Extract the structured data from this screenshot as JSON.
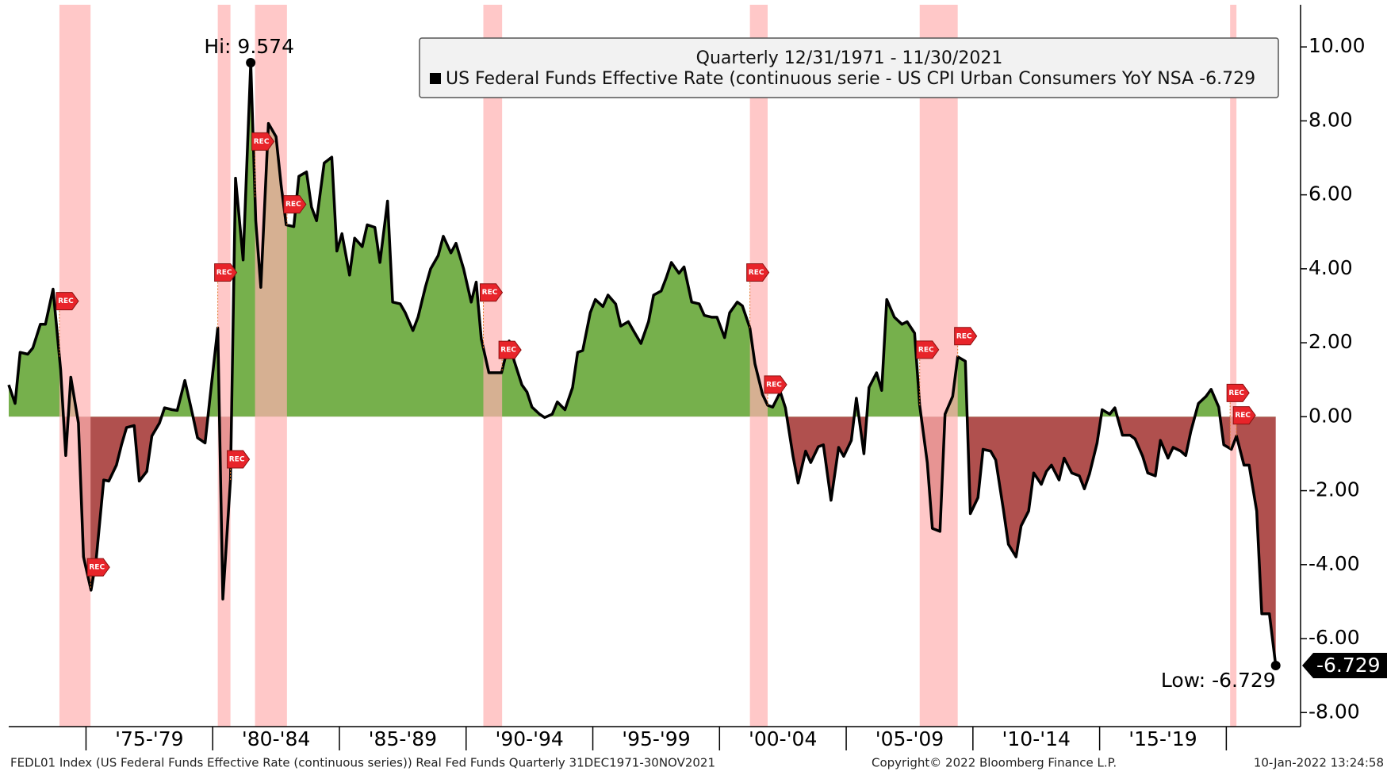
{
  "chart_data": {
    "type": "area",
    "legend_title": "Quarterly 12/31/1971 - 11/30/2021",
    "series_label": "US Federal Funds Effective Rate (continuous serie - US CPI Urban Consumers YoY NSA -6.729",
    "line_color": "#000000",
    "positive_color": "#76b04c",
    "negative_color": "#b0504e",
    "recession_color": "#ffb0b0",
    "x": [
      1971.95,
      1972.2,
      1972.4,
      1972.7,
      1972.9,
      1973.2,
      1973.4,
      1973.7,
      1974.0,
      1974.2,
      1974.4,
      1974.7,
      1974.9,
      1975.2,
      1975.4,
      1975.7,
      1975.9,
      1976.2,
      1976.4,
      1976.6,
      1976.9,
      1977.1,
      1977.4,
      1977.6,
      1977.9,
      1978.1,
      1978.4,
      1978.6,
      1978.9,
      1979.2,
      1979.4,
      1979.7,
      1979.9,
      1980.2,
      1980.4,
      1980.7,
      1980.9,
      1981.2,
      1981.5,
      1981.7,
      1981.9,
      1982.2,
      1982.5,
      1982.7,
      1982.9,
      1983.2,
      1983.4,
      1983.7,
      1983.9,
      1984.1,
      1984.4,
      1984.7,
      1984.9,
      1985.1,
      1985.4,
      1985.6,
      1985.9,
      1986.1,
      1986.4,
      1986.6,
      1986.9,
      1987.1,
      1987.4,
      1987.6,
      1987.9,
      1988.1,
      1988.4,
      1988.6,
      1988.9,
      1989.1,
      1989.4,
      1989.6,
      1989.9,
      1990.2,
      1990.4,
      1990.6,
      1990.9,
      1991.1,
      1991.4,
      1991.7,
      1991.9,
      1992.2,
      1992.4,
      1992.6,
      1992.9,
      1993.1,
      1993.4,
      1993.6,
      1993.9,
      1994.2,
      1994.4,
      1994.6,
      1994.9,
      1995.1,
      1995.4,
      1995.6,
      1995.9,
      1996.1,
      1996.4,
      1996.6,
      1996.9,
      1997.2,
      1997.4,
      1997.7,
      1997.9,
      1998.1,
      1998.4,
      1998.6,
      1998.9,
      1999.2,
      1999.4,
      1999.7,
      1999.9,
      2000.2,
      2000.4,
      2000.7,
      2000.9,
      2001.2,
      2001.4,
      2001.7,
      2001.9,
      2002.1,
      2002.4,
      2002.6,
      2002.9,
      2003.1,
      2003.4,
      2003.6,
      2003.9,
      2004.1,
      2004.4,
      2004.7,
      2004.9,
      2005.2,
      2005.4,
      2005.7,
      2005.9,
      2006.2,
      2006.4,
      2006.6,
      2006.9,
      2007.2,
      2007.4,
      2007.7,
      2007.9,
      2008.2,
      2008.4,
      2008.7,
      2008.9,
      2009.2,
      2009.4,
      2009.7,
      2009.9,
      2010.2,
      2010.4,
      2010.7,
      2010.9,
      2011.2,
      2011.4,
      2011.7,
      2011.9,
      2012.2,
      2012.4,
      2012.7,
      2012.9,
      2013.1,
      2013.4,
      2013.6,
      2013.9,
      2014.2,
      2014.4,
      2014.6,
      2014.9,
      2015.1,
      2015.4,
      2015.6,
      2015.9,
      2016.2,
      2016.4,
      2016.7,
      2016.9,
      2017.2,
      2017.4,
      2017.7,
      2017.9,
      2018.2,
      2018.4,
      2018.6,
      2018.9,
      2019.2,
      2019.4,
      2019.7,
      2019.9,
      2020.2,
      2020.4,
      2020.7,
      2020.9,
      2021.2,
      2021.4,
      2021.7,
      2021.95
    ],
    "values": [
      0.86,
      0.36,
      1.74,
      1.69,
      1.86,
      2.5,
      2.5,
      3.45,
      1.26,
      -1.05,
      1.07,
      -0.17,
      -3.79,
      -4.69,
      -3.88,
      -1.71,
      -1.74,
      -1.31,
      -0.76,
      -0.29,
      -0.24,
      -1.74,
      -1.48,
      -0.52,
      -0.17,
      0.24,
      0.19,
      0.17,
      0.98,
      0.07,
      -0.57,
      -0.71,
      0.55,
      2.4,
      -4.93,
      -1.71,
      6.45,
      4.24,
      9.574,
      5.3,
      3.5,
      7.93,
      7.57,
      6.26,
      5.19,
      5.14,
      6.5,
      6.62,
      5.67,
      5.3,
      6.86,
      7.02,
      4.48,
      4.95,
      3.83,
      4.83,
      4.6,
      5.19,
      5.12,
      4.17,
      5.83,
      3.1,
      3.05,
      2.81,
      2.33,
      2.69,
      3.52,
      4.0,
      4.36,
      4.88,
      4.43,
      4.69,
      4.0,
      3.1,
      3.64,
      2.1,
      1.19,
      1.19,
      1.19,
      2.05,
      1.5,
      0.86,
      0.67,
      0.26,
      0.07,
      -0.02,
      0.07,
      0.4,
      0.19,
      0.79,
      1.74,
      1.79,
      2.81,
      3.17,
      2.98,
      3.29,
      3.05,
      2.45,
      2.57,
      2.33,
      1.98,
      2.57,
      3.29,
      3.4,
      3.76,
      4.17,
      3.88,
      4.05,
      3.1,
      3.05,
      2.74,
      2.69,
      2.69,
      2.14,
      2.81,
      3.1,
      3.0,
      2.4,
      1.43,
      0.6,
      0.31,
      0.26,
      0.67,
      0.24,
      -1.07,
      -1.79,
      -0.93,
      -1.24,
      -0.81,
      -0.76,
      -2.26,
      -0.83,
      -1.07,
      -0.64,
      0.5,
      -1.0,
      0.79,
      1.19,
      0.71,
      3.17,
      2.69,
      2.5,
      2.57,
      2.26,
      0.31,
      -1.24,
      -3.02,
      -3.1,
      0.07,
      0.55,
      1.62,
      1.5,
      -2.62,
      -2.19,
      -0.88,
      -0.93,
      -1.17,
      -2.5,
      -3.45,
      -3.79,
      -2.95,
      -2.55,
      -1.52,
      -1.83,
      -1.48,
      -1.31,
      -1.71,
      -1.12,
      -1.52,
      -1.6,
      -1.95,
      -1.55,
      -0.71,
      0.19,
      0.07,
      0.24,
      -0.5,
      -0.5,
      -0.6,
      -1.07,
      -1.52,
      -1.6,
      -0.64,
      -1.12,
      -0.83,
      -0.93,
      -1.05,
      -0.4,
      0.36,
      0.55,
      0.74,
      0.26,
      -0.76,
      -0.88,
      -0.52,
      -1.31,
      -1.31,
      -2.55,
      -5.33,
      -5.33,
      -6.729
    ],
    "xlim": [
      1971.95,
      2022.93
    ],
    "xticks": [
      1975,
      1980,
      1985,
      1990,
      1995,
      2000,
      2005,
      2010,
      2015,
      2020
    ],
    "categories": [
      "'75-'79",
      "'80-'84",
      "'85-'89",
      "'90-'94",
      "'95-'99",
      "'00-'04",
      "'05-'09",
      "'10-'14",
      "'15-'19"
    ],
    "ylim": [
      -8.38,
      11.14
    ],
    "yticks": [
      {
        "value": 10,
        "label": "10.00"
      },
      {
        "value": 8,
        "label": "8.00"
      },
      {
        "value": 6,
        "label": "6.00"
      },
      {
        "value": 4,
        "label": "4.00"
      },
      {
        "value": 2,
        "label": "2.00"
      },
      {
        "value": 0,
        "label": "0.00"
      },
      {
        "value": -2,
        "label": "-2.00"
      },
      {
        "value": -4,
        "label": "-4.00"
      },
      {
        "value": -6,
        "label": "-6.00"
      },
      {
        "value": -8,
        "label": "-8.00"
      }
    ],
    "grid": false,
    "rec_label": "REC",
    "recessions": [
      {
        "start": 1973.95,
        "end": 1975.18
      },
      {
        "start": 1980.2,
        "end": 1980.7
      },
      {
        "start": 1981.67,
        "end": 1982.93
      },
      {
        "start": 1990.68,
        "end": 1991.42
      },
      {
        "start": 2001.2,
        "end": 2001.9
      },
      {
        "start": 2007.9,
        "end": 2009.4
      },
      {
        "start": 2020.15,
        "end": 2020.4
      }
    ],
    "hi": {
      "x": 1981.5,
      "value": 9.574,
      "label": "Hi: 9.574"
    },
    "low": {
      "x": 2021.95,
      "value": -6.729,
      "label": "Low: -6.729"
    },
    "last_value_label": "-6.729"
  },
  "footer": {
    "left": "FEDL01 Index (US Federal Funds Effective Rate (continuous series)) Real Fed Funds  Quarterly 31DEC1971-30NOV2021",
    "center": "Copyright© 2022 Bloomberg Finance L.P.",
    "right": "10-Jan-2022 13:24:58"
  }
}
